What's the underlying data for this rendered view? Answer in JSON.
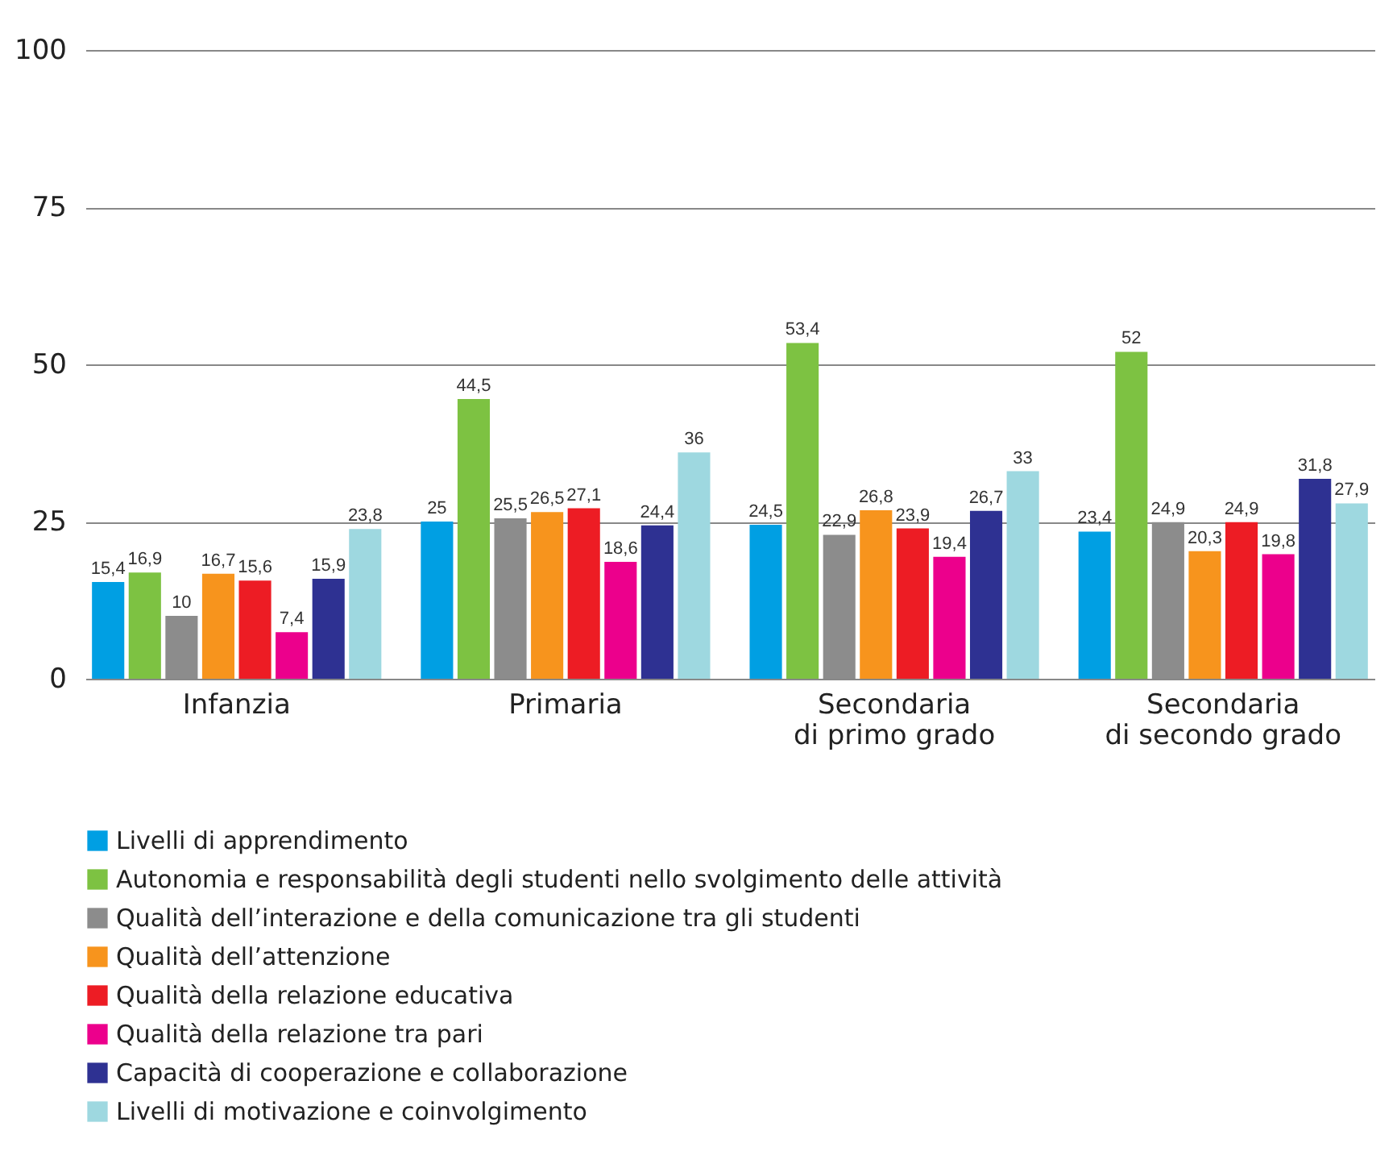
{
  "chart_data": {
    "type": "bar",
    "categories": [
      "Infanzia",
      "Primaria",
      "Secondaria\ndi primo grado",
      "Secondaria\ndi secondo grado"
    ],
    "series": [
      {
        "name": "Livelli di apprendimento",
        "color": "#009fe3",
        "values": [
          15.4,
          25,
          24.5,
          23.4
        ],
        "value_labels": [
          "15,4",
          "25",
          "24,5",
          "23,4"
        ]
      },
      {
        "name": "Autonomia e responsabilità degli studenti nello svolgimento delle attività",
        "color": "#7dc242",
        "values": [
          16.9,
          44.5,
          53.4,
          52
        ],
        "value_labels": [
          "16,9",
          "44,5",
          "53,4",
          "52"
        ]
      },
      {
        "name": "Qualità dell’interazione e della comunicazione tra gli studenti",
        "color": "#8c8c8c",
        "values": [
          10,
          25.5,
          22.9,
          24.9
        ],
        "value_labels": [
          "10",
          "25,5",
          "22,9",
          "24,9"
        ]
      },
      {
        "name": "Qualità dell’attenzione",
        "color": "#f7941d",
        "values": [
          16.7,
          26.5,
          26.8,
          20.3
        ],
        "value_labels": [
          "16,7",
          "26,5",
          "26,8",
          "20,3"
        ]
      },
      {
        "name": "Qualità della relazione educativa",
        "color": "#ed1c24",
        "values": [
          15.6,
          27.1,
          23.9,
          24.9
        ],
        "value_labels": [
          "15,6",
          "27,1",
          "23,9",
          "24,9"
        ]
      },
      {
        "name": "Qualità della relazione tra pari",
        "color": "#ec008c",
        "values": [
          7.4,
          18.6,
          19.4,
          19.8
        ],
        "value_labels": [
          "7,4",
          "18,6",
          "19,4",
          "19,8"
        ]
      },
      {
        "name": "Capacità di cooperazione e collaborazione",
        "color": "#2e3192",
        "values": [
          15.9,
          24.4,
          26.7,
          31.8
        ],
        "value_labels": [
          "15,9",
          "24,4",
          "26,7",
          "31,8"
        ]
      },
      {
        "name": "Livelli di motivazione e coinvolgimento",
        "color": "#9ed8e0",
        "values": [
          23.8,
          36,
          33,
          27.9
        ],
        "value_labels": [
          "23,8",
          "36",
          "33",
          "27,9"
        ]
      }
    ],
    "ylim": [
      0,
      100
    ],
    "yticks": [
      0,
      25,
      50,
      75,
      100
    ],
    "grid": "y",
    "legend": "bottom"
  }
}
